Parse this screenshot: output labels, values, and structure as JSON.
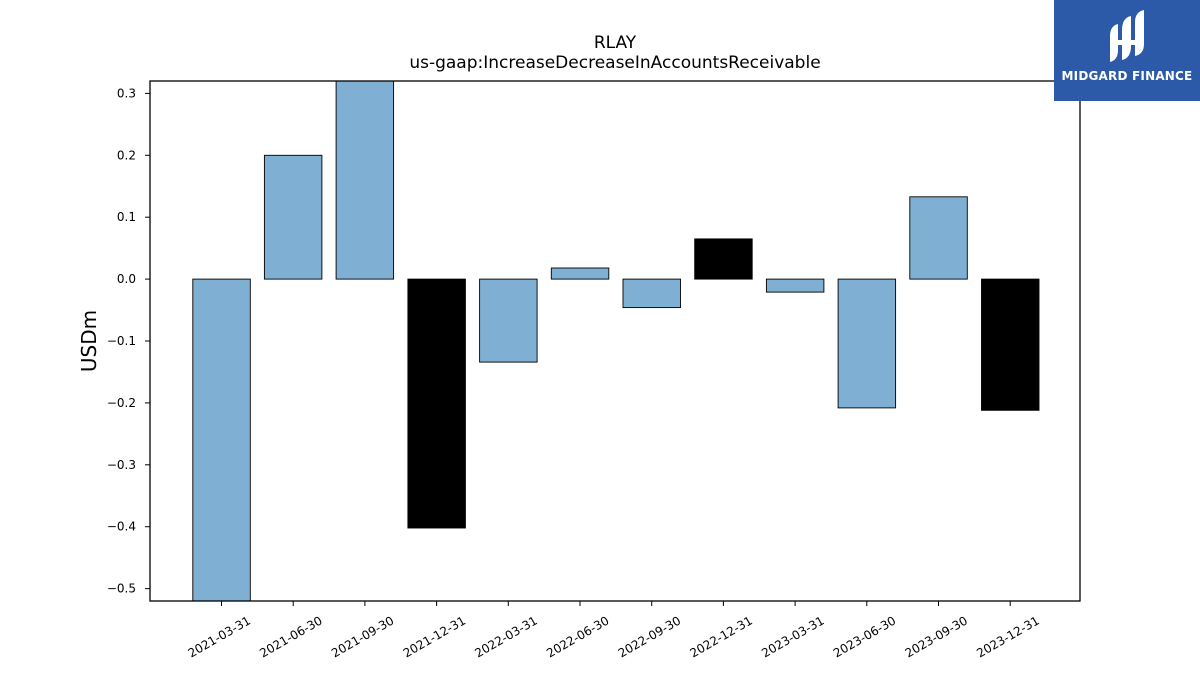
{
  "chart_data": {
    "type": "bar",
    "title": "RLAY",
    "subtitle": "us-gaap:IncreaseDecreaseInAccountsReceivable",
    "xlabel": "",
    "ylabel": "USDm",
    "ylim": [
      -0.52,
      0.32
    ],
    "yticks": [
      0.3,
      0.2,
      0.1,
      0.0,
      -0.1,
      -0.2,
      -0.3,
      -0.4,
      -0.5
    ],
    "ytick_labels": [
      "0.3",
      "0.2",
      "0.1",
      "0.0",
      "−0.1",
      "−0.2",
      "−0.3",
      "−0.4",
      "−0.5"
    ],
    "categories": [
      "2021-03-31",
      "2021-06-30",
      "2021-09-30",
      "2021-12-31",
      "2022-03-31",
      "2022-06-30",
      "2022-09-30",
      "2022-12-31",
      "2023-03-31",
      "2023-06-30",
      "2023-09-30",
      "2023-12-31"
    ],
    "values": [
      -0.52,
      0.2,
      0.32,
      -0.402,
      -0.134,
      0.018,
      -0.046,
      0.065,
      -0.021,
      -0.208,
      0.133,
      -0.212
    ],
    "bar_colors": [
      "#7fafd3",
      "#7fafd3",
      "#7fafd3",
      "#000000",
      "#7fafd3",
      "#7fafd3",
      "#7fafd3",
      "#000000",
      "#7fafd3",
      "#7fafd3",
      "#7fafd3",
      "#000000"
    ],
    "grid": false,
    "legend": "none"
  },
  "logo": {
    "text": "MIDGARD FINANCE",
    "background": "#2d5aa8",
    "icon": "midgard-logo-icon"
  }
}
